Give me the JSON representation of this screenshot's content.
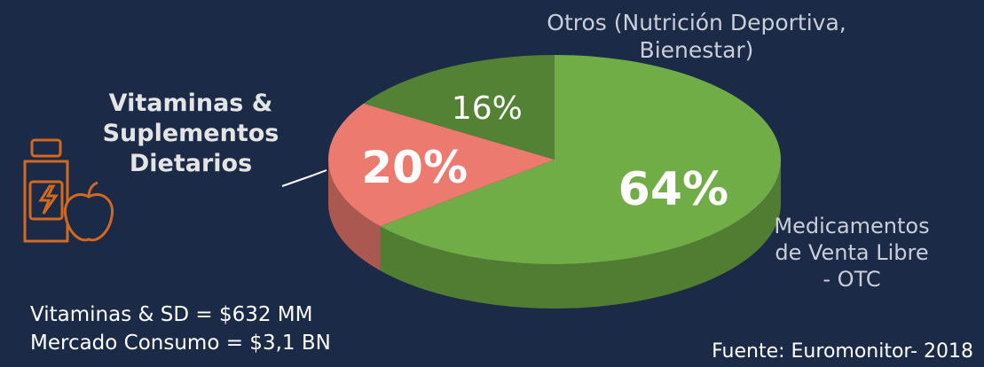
{
  "chart_data": {
    "type": "pie",
    "categories": [
      "Medicamentos de Venta Libre - OTC",
      "Vitaminas & Suplementos Dietarios",
      "Otros (Nutrición Deportiva, Bienestar)"
    ],
    "values": [
      64,
      20,
      16
    ],
    "value_labels": [
      "64%",
      "20%",
      "16%"
    ],
    "colors": [
      "#70ad47",
      "#ec7a6f",
      "#548235"
    ],
    "notes": [
      "Vitaminas & SD = $632 MM",
      "Mercado Consumo = $3,1 BN"
    ],
    "source": "Fuente: Euromonitor- 2018"
  }
}
